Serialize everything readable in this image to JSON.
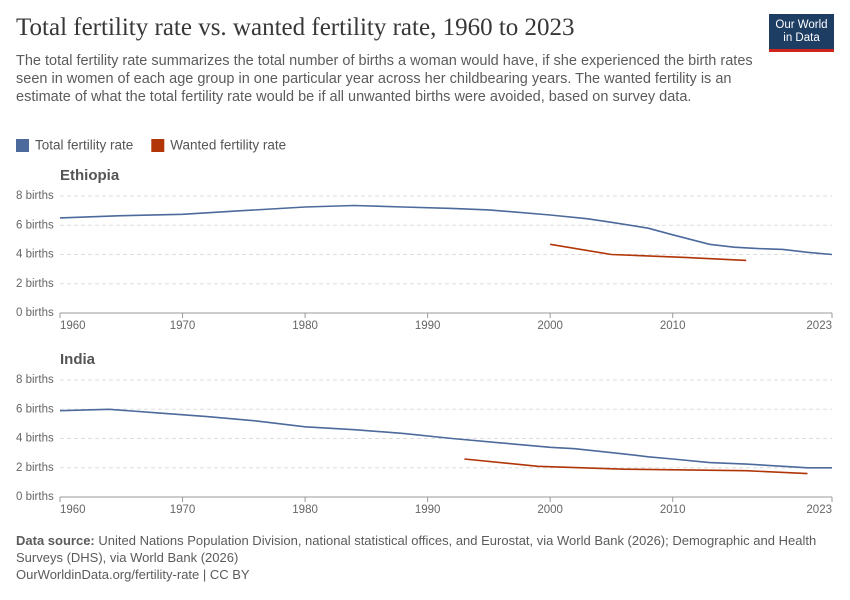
{
  "header": {
    "title": "Total fertility rate vs. wanted fertility rate, 1960 to 2023",
    "subtitle": "The total fertility rate summarizes the total number of births a woman would have, if she experienced the birth rates seen in women of each age group in one particular year across her childbearing years. The wanted fertility is an estimate of what the total fertility rate would be if all unwanted births were avoided, based on survey data.",
    "logo": [
      "Our World",
      "in Data"
    ]
  },
  "chart_data": [
    {
      "type": "line",
      "title": "Ethiopia",
      "xlim": [
        1960,
        2023
      ],
      "xticks": [
        1960,
        1970,
        1980,
        1990,
        2000,
        2010,
        2023
      ],
      "ylim": [
        0,
        8
      ],
      "yticks": [
        {
          "value": 0,
          "label": "0 births"
        },
        {
          "value": 2,
          "label": "2 births"
        },
        {
          "value": 4,
          "label": "4 births"
        },
        {
          "value": 6,
          "label": "6 births"
        },
        {
          "value": 8,
          "label": "8 births"
        }
      ],
      "grid": true,
      "series": [
        {
          "name": "Total fertility rate",
          "color": "#4c6a9c",
          "x": [
            1960,
            1965,
            1970,
            1975,
            1980,
            1984,
            1988,
            1992,
            1995,
            2000,
            2003,
            2005,
            2008,
            2010,
            2013,
            2015,
            2017,
            2019,
            2021,
            2023
          ],
          "values": [
            6.5,
            6.65,
            6.75,
            7.0,
            7.25,
            7.35,
            7.25,
            7.15,
            7.05,
            6.7,
            6.45,
            6.2,
            5.8,
            5.35,
            4.7,
            4.5,
            4.4,
            4.35,
            4.15,
            4.0
          ]
        },
        {
          "name": "Wanted fertility rate",
          "color": "#b13507",
          "x": [
            2000,
            2005,
            2011,
            2016
          ],
          "values": [
            4.7,
            4.0,
            3.8,
            3.6
          ]
        }
      ]
    },
    {
      "type": "line",
      "title": "India",
      "xlim": [
        1960,
        2023
      ],
      "xticks": [
        1960,
        1970,
        1980,
        1990,
        2000,
        2010,
        2023
      ],
      "ylim": [
        0,
        8
      ],
      "yticks": [
        {
          "value": 0,
          "label": "0 births"
        },
        {
          "value": 2,
          "label": "2 births"
        },
        {
          "value": 4,
          "label": "4 births"
        },
        {
          "value": 6,
          "label": "6 births"
        },
        {
          "value": 8,
          "label": "8 births"
        }
      ],
      "grid": true,
      "series": [
        {
          "color": "#4c6a9c",
          "x": [
            1960,
            1964,
            1968,
            1972,
            1976,
            1980,
            1984,
            1988,
            1992,
            1996,
            2000,
            2002,
            2006,
            2008,
            2010,
            2013,
            2016,
            2019,
            2021,
            2023
          ],
          "values": [
            5.9,
            6.0,
            5.75,
            5.5,
            5.2,
            4.8,
            4.6,
            4.35,
            4.0,
            3.7,
            3.4,
            3.3,
            2.95,
            2.75,
            2.6,
            2.35,
            2.25,
            2.1,
            2.0,
            2.0
          ]
        },
        {
          "color": "#b13507",
          "x": [
            1993,
            1999,
            2006,
            2016,
            2021
          ],
          "values": [
            2.6,
            2.1,
            1.9,
            1.8,
            1.6
          ]
        }
      ]
    }
  ],
  "footer": {
    "source_label": "Data source:",
    "source": "United Nations Population Division, national statistical offices, and Eurostat, via World Bank (2026); Demographic and Health Surveys (DHS), via World Bank (2026)",
    "url": "OurWorldinData.org/fertility-rate | CC BY"
  }
}
